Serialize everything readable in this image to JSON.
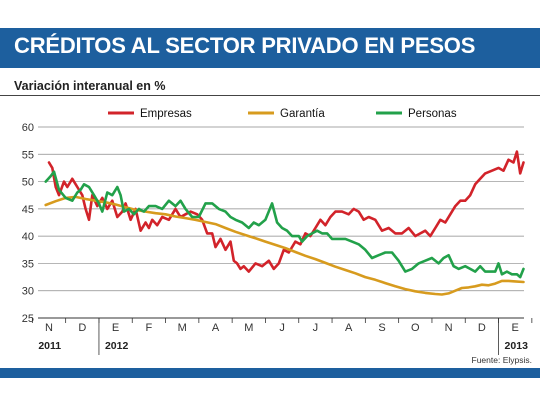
{
  "header": {
    "title": "CRÉDITOS AL SECTOR PRIVADO EN PESOS",
    "subtitle": "Variación interanual en %",
    "source": "Fuente: Elypsis."
  },
  "colors": {
    "header_bg": "#1d5f9e",
    "empresas": "#d2232a",
    "garantia": "#d79b1e",
    "personas": "#22a14a"
  },
  "chart_data": {
    "type": "line",
    "title": "CRÉDITOS AL SECTOR PRIVADO EN PESOS",
    "subtitle": "Variación interanual en %",
    "xlabel": "",
    "ylabel": "",
    "ylim": [
      25,
      60
    ],
    "yticks": [
      60,
      55,
      50,
      45,
      40,
      35,
      30,
      25
    ],
    "xticks": [
      "N",
      "D",
      "E",
      "F",
      "M",
      "A",
      "M",
      "J",
      "J",
      "A",
      "S",
      "O",
      "N",
      "D",
      "E"
    ],
    "years": [
      {
        "label": "2011",
        "start_index": 0
      },
      {
        "label": "2012",
        "start_index": 2
      },
      {
        "label": "2013",
        "start_index": 14
      }
    ],
    "grid": "horizontal",
    "legend_position": "top",
    "series": [
      {
        "name": "Empresas",
        "color": "#d2232a",
        "points": [
          [
            0.0,
            53.5
          ],
          [
            0.1,
            52.5
          ],
          [
            0.2,
            49.0
          ],
          [
            0.3,
            47.5
          ],
          [
            0.45,
            50.0
          ],
          [
            0.55,
            49.0
          ],
          [
            0.7,
            50.5
          ],
          [
            0.85,
            49.0
          ],
          [
            1.0,
            47.5
          ],
          [
            1.1,
            45.0
          ],
          [
            1.2,
            43.0
          ],
          [
            1.3,
            47.5
          ],
          [
            1.45,
            45.5
          ],
          [
            1.6,
            47.0
          ],
          [
            1.75,
            45.0
          ],
          [
            1.9,
            46.5
          ],
          [
            2.05,
            43.5
          ],
          [
            2.2,
            44.5
          ],
          [
            2.3,
            46.0
          ],
          [
            2.45,
            43.0
          ],
          [
            2.6,
            45.0
          ],
          [
            2.75,
            41.0
          ],
          [
            2.9,
            42.5
          ],
          [
            3.0,
            41.5
          ],
          [
            3.1,
            43.0
          ],
          [
            3.25,
            42.0
          ],
          [
            3.4,
            43.5
          ],
          [
            3.6,
            43.0
          ],
          [
            3.8,
            45.0
          ],
          [
            3.95,
            43.5
          ],
          [
            4.1,
            44.0
          ],
          [
            4.25,
            44.5
          ],
          [
            4.45,
            44.0
          ],
          [
            4.6,
            43.0
          ],
          [
            4.75,
            40.5
          ],
          [
            4.9,
            40.5
          ],
          [
            5.0,
            38.0
          ],
          [
            5.15,
            39.5
          ],
          [
            5.3,
            37.5
          ],
          [
            5.45,
            39.0
          ],
          [
            5.55,
            35.5
          ],
          [
            5.65,
            35.0
          ],
          [
            5.75,
            34.0
          ],
          [
            5.85,
            34.5
          ],
          [
            6.0,
            33.5
          ],
          [
            6.2,
            35.0
          ],
          [
            6.4,
            34.5
          ],
          [
            6.6,
            35.5
          ],
          [
            6.75,
            34.0
          ],
          [
            6.9,
            35.0
          ],
          [
            7.05,
            37.5
          ],
          [
            7.2,
            37.0
          ],
          [
            7.4,
            39.0
          ],
          [
            7.55,
            38.5
          ],
          [
            7.7,
            40.5
          ],
          [
            7.85,
            40.0
          ],
          [
            8.0,
            41.5
          ],
          [
            8.15,
            43.0
          ],
          [
            8.3,
            42.0
          ],
          [
            8.45,
            43.5
          ],
          [
            8.6,
            44.5
          ],
          [
            8.8,
            44.5
          ],
          [
            9.0,
            44.0
          ],
          [
            9.15,
            45.0
          ],
          [
            9.3,
            44.5
          ],
          [
            9.45,
            43.0
          ],
          [
            9.6,
            43.5
          ],
          [
            9.8,
            43.0
          ],
          [
            10.0,
            41.0
          ],
          [
            10.2,
            41.5
          ],
          [
            10.4,
            40.5
          ],
          [
            10.6,
            40.5
          ],
          [
            10.8,
            41.5
          ],
          [
            11.0,
            40.0
          ],
          [
            11.15,
            40.5
          ],
          [
            11.3,
            41.0
          ],
          [
            11.45,
            40.0
          ],
          [
            11.6,
            41.5
          ],
          [
            11.75,
            43.0
          ],
          [
            11.9,
            42.5
          ],
          [
            12.05,
            44.0
          ],
          [
            12.2,
            45.5
          ],
          [
            12.35,
            46.5
          ],
          [
            12.5,
            46.5
          ],
          [
            12.65,
            47.5
          ],
          [
            12.8,
            49.5
          ],
          [
            12.95,
            50.5
          ],
          [
            13.1,
            51.5
          ],
          [
            13.3,
            52.0
          ],
          [
            13.5,
            52.5
          ],
          [
            13.65,
            52.0
          ],
          [
            13.8,
            54.0
          ],
          [
            13.95,
            53.5
          ],
          [
            14.05,
            55.5
          ],
          [
            14.15,
            51.5
          ],
          [
            14.25,
            53.5
          ]
        ]
      },
      {
        "name": "Garantía",
        "color": "#d79b1e",
        "points": [
          [
            -0.1,
            45.7
          ],
          [
            0.2,
            46.4
          ],
          [
            0.5,
            47.0
          ],
          [
            0.8,
            47.2
          ],
          [
            1.1,
            46.8
          ],
          [
            1.4,
            46.5
          ],
          [
            1.7,
            46.2
          ],
          [
            2.0,
            45.8
          ],
          [
            2.3,
            45.3
          ],
          [
            2.6,
            44.8
          ],
          [
            2.9,
            44.5
          ],
          [
            3.2,
            44.2
          ],
          [
            3.5,
            44.0
          ],
          [
            3.8,
            43.6
          ],
          [
            4.1,
            43.3
          ],
          [
            4.4,
            43.0
          ],
          [
            4.7,
            42.6
          ],
          [
            5.0,
            42.2
          ],
          [
            5.3,
            41.5
          ],
          [
            5.6,
            40.8
          ],
          [
            5.9,
            40.2
          ],
          [
            6.2,
            39.6
          ],
          [
            6.5,
            39.0
          ],
          [
            6.8,
            38.4
          ],
          [
            7.1,
            37.8
          ],
          [
            7.4,
            37.1
          ],
          [
            7.7,
            36.4
          ],
          [
            8.0,
            35.8
          ],
          [
            8.3,
            35.1
          ],
          [
            8.6,
            34.4
          ],
          [
            8.9,
            33.8
          ],
          [
            9.2,
            33.2
          ],
          [
            9.5,
            32.5
          ],
          [
            9.8,
            32.0
          ],
          [
            10.1,
            31.4
          ],
          [
            10.4,
            30.8
          ],
          [
            10.7,
            30.3
          ],
          [
            11.0,
            29.9
          ],
          [
            11.3,
            29.6
          ],
          [
            11.6,
            29.4
          ],
          [
            11.8,
            29.3
          ],
          [
            12.0,
            29.5
          ],
          [
            12.2,
            30.0
          ],
          [
            12.4,
            30.5
          ],
          [
            12.6,
            30.6
          ],
          [
            12.8,
            30.8
          ],
          [
            13.0,
            31.1
          ],
          [
            13.2,
            31.0
          ],
          [
            13.4,
            31.3
          ],
          [
            13.6,
            31.8
          ],
          [
            13.8,
            31.8
          ],
          [
            14.0,
            31.7
          ],
          [
            14.25,
            31.6
          ]
        ]
      },
      {
        "name": "Personas",
        "color": "#22a14a",
        "points": [
          [
            -0.1,
            50.0
          ],
          [
            0.05,
            51.0
          ],
          [
            0.15,
            51.8
          ],
          [
            0.3,
            48.5
          ],
          [
            0.5,
            47.0
          ],
          [
            0.7,
            46.5
          ],
          [
            0.85,
            48.0
          ],
          [
            0.95,
            48.5
          ],
          [
            1.05,
            49.5
          ],
          [
            1.2,
            49.0
          ],
          [
            1.35,
            47.5
          ],
          [
            1.5,
            46.0
          ],
          [
            1.6,
            44.5
          ],
          [
            1.75,
            48.0
          ],
          [
            1.9,
            47.5
          ],
          [
            2.05,
            49.0
          ],
          [
            2.15,
            47.5
          ],
          [
            2.25,
            44.5
          ],
          [
            2.4,
            45.0
          ],
          [
            2.55,
            44.0
          ],
          [
            2.7,
            45.0
          ],
          [
            2.85,
            44.5
          ],
          [
            3.0,
            45.5
          ],
          [
            3.2,
            45.5
          ],
          [
            3.4,
            45.0
          ],
          [
            3.6,
            46.5
          ],
          [
            3.8,
            45.5
          ],
          [
            3.95,
            46.5
          ],
          [
            4.1,
            45.0
          ],
          [
            4.3,
            43.5
          ],
          [
            4.5,
            43.5
          ],
          [
            4.7,
            46.0
          ],
          [
            4.9,
            46.0
          ],
          [
            5.1,
            45.0
          ],
          [
            5.3,
            44.5
          ],
          [
            5.45,
            43.5
          ],
          [
            5.6,
            43.0
          ],
          [
            5.8,
            42.5
          ],
          [
            6.0,
            41.5
          ],
          [
            6.15,
            42.5
          ],
          [
            6.3,
            42.0
          ],
          [
            6.5,
            43.0
          ],
          [
            6.7,
            46.0
          ],
          [
            6.85,
            42.5
          ],
          [
            7.0,
            41.5
          ],
          [
            7.15,
            41.0
          ],
          [
            7.3,
            40.0
          ],
          [
            7.5,
            40.0
          ],
          [
            7.6,
            39.0
          ],
          [
            7.75,
            40.0
          ],
          [
            7.9,
            40.5
          ],
          [
            8.05,
            41.0
          ],
          [
            8.2,
            40.5
          ],
          [
            8.35,
            40.5
          ],
          [
            8.5,
            39.5
          ],
          [
            8.7,
            39.5
          ],
          [
            8.9,
            39.5
          ],
          [
            9.1,
            39.0
          ],
          [
            9.3,
            38.5
          ],
          [
            9.5,
            37.5
          ],
          [
            9.7,
            36.0
          ],
          [
            9.9,
            36.5
          ],
          [
            10.1,
            37.0
          ],
          [
            10.3,
            37.0
          ],
          [
            10.5,
            35.5
          ],
          [
            10.7,
            33.5
          ],
          [
            10.9,
            34.0
          ],
          [
            11.1,
            35.0
          ],
          [
            11.3,
            35.5
          ],
          [
            11.5,
            36.0
          ],
          [
            11.7,
            35.0
          ],
          [
            11.85,
            36.0
          ],
          [
            12.0,
            36.5
          ],
          [
            12.15,
            34.5
          ],
          [
            12.3,
            34.0
          ],
          [
            12.5,
            34.5
          ],
          [
            12.65,
            34.0
          ],
          [
            12.8,
            33.5
          ],
          [
            12.95,
            34.5
          ],
          [
            13.1,
            33.5
          ],
          [
            13.25,
            33.5
          ],
          [
            13.4,
            33.5
          ],
          [
            13.5,
            35.0
          ],
          [
            13.6,
            33.0
          ],
          [
            13.75,
            33.5
          ],
          [
            13.9,
            33.0
          ],
          [
            14.05,
            33.0
          ],
          [
            14.15,
            32.5
          ],
          [
            14.25,
            34.0
          ]
        ]
      }
    ]
  }
}
